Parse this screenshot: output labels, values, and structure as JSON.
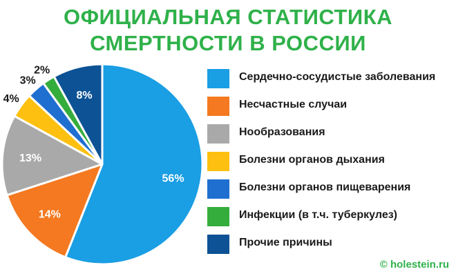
{
  "header": {
    "title_line1": "ОФИЦИАЛЬНАЯ СТАТИСТИКА",
    "title_line2": "СМЕРТНОСТИ В РОССИИ"
  },
  "footer": {
    "copyright": "© holestein.ru"
  },
  "chart_data": {
    "type": "pie",
    "title": "ОФИЦИАЛЬНАЯ СТАТИСТИКА СМЕРТНОСТИ В РОССИИ",
    "legend_position": "right",
    "slices": [
      {
        "label": "Сердечно-сосудистые заболевания",
        "value": 56,
        "display": "56%",
        "color": "#1a9ee4"
      },
      {
        "label": "Несчастные случаи",
        "value": 14,
        "display": "14%",
        "color": "#f47920"
      },
      {
        "label": "Нообразования",
        "value": 13,
        "display": "13%",
        "color": "#a9a9a9"
      },
      {
        "label": "Болезни органов дыхания",
        "value": 4,
        "display": "4%",
        "color": "#fdc010"
      },
      {
        "label": "Болезни органов пищеварения",
        "value": 3,
        "display": "3%",
        "color": "#1f6fd0"
      },
      {
        "label": "Инфекции (в т.ч. туберкулез)",
        "value": 2,
        "display": "2%",
        "color": "#35ad3c"
      },
      {
        "label": "Прочие причины",
        "value": 8,
        "display": "8%",
        "color": "#0d5294"
      }
    ]
  }
}
